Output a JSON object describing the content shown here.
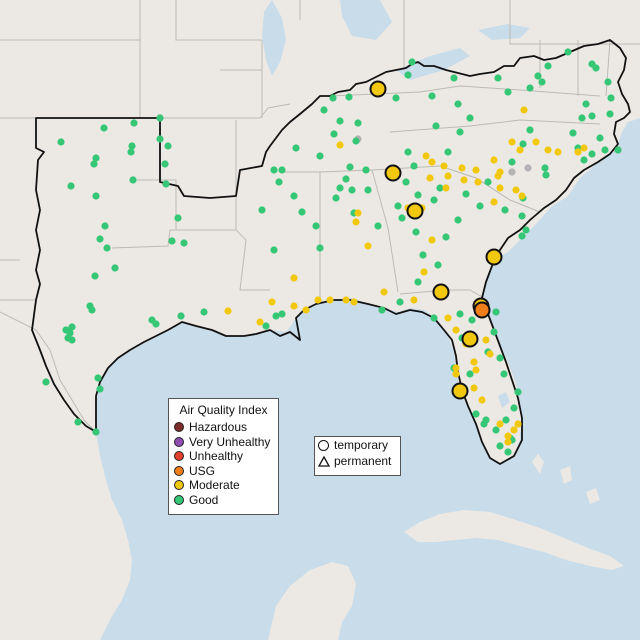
{
  "map": {
    "colors": {
      "water": "#c9dcea",
      "land": "#ece9e4",
      "good": "#35c775",
      "moderate": "#f2c80f",
      "usg": "#ef7d1a",
      "unhealthy": "#e2402e",
      "very_unhealthy": "#8f4fb0",
      "hazardous": "#7d2a2a",
      "unknown": "#b4b4b4"
    }
  },
  "legend": {
    "title": "Air Quality Index",
    "categories": [
      {
        "label": "Hazardous",
        "color": "#7d2a2a"
      },
      {
        "label": "Very Unhealthy",
        "color": "#8f4fb0"
      },
      {
        "label": "Unhealthy",
        "color": "#e2402e"
      },
      {
        "label": "USG",
        "color": "#ef7d1a"
      },
      {
        "label": "Moderate",
        "color": "#f2c80f"
      },
      {
        "label": "Good",
        "color": "#35c775"
      }
    ]
  },
  "monitor_types": {
    "temporary": "temporary",
    "permanent": "permanent"
  }
}
